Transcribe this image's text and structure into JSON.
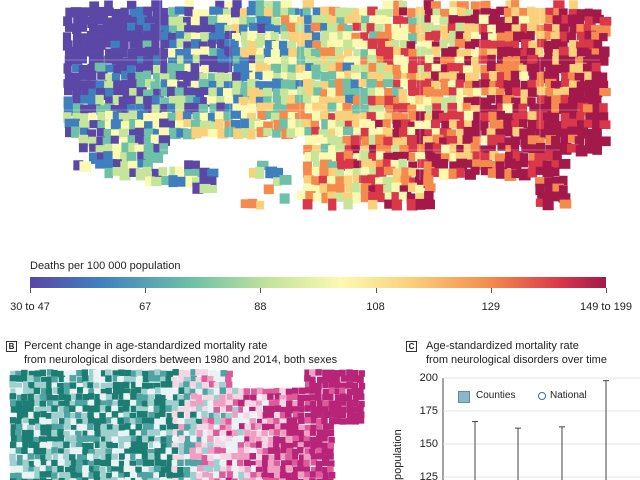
{
  "panel_a": {
    "legend": {
      "title": "Deaths per 100 000 population",
      "ticks": [
        "30 to 47",
        "67",
        "88",
        "108",
        "129",
        "149 to 199"
      ],
      "tick_positions": [
        0,
        0.2,
        0.4,
        0.6,
        0.8,
        1.0
      ]
    },
    "palette": [
      "#5a47a6",
      "#3f7fbf",
      "#6ec0a8",
      "#c5e59a",
      "#fbfab0",
      "#fbd07a",
      "#f48a4d",
      "#d9374a",
      "#a3194a"
    ]
  },
  "panel_b": {
    "badge": "B",
    "title_line1": "Percent change in age-standardized mortality rate",
    "title_line2": "from neurological disorders between 1980 and 2014, both sexes",
    "palette": [
      "#1c7d73",
      "#4fa3a0",
      "#9fcfcf",
      "#e9f2f4",
      "#f6d6e4",
      "#ef9fc3",
      "#dc5b9a",
      "#b72478"
    ]
  },
  "panel_c": {
    "badge": "C",
    "title_line1": "Age-standardized mortality rate",
    "title_line2": "from neurological disorders over time",
    "legend": {
      "counties": "Counties",
      "national": "National"
    },
    "y_axis_title": "population",
    "y_ticks": [
      "200",
      "175",
      "150",
      "125"
    ]
  },
  "chart_data": {
    "type": "bar",
    "title": "Age-standardized mortality rate from neurological disorders over time",
    "ylabel": "population",
    "ylim": [
      125,
      200
    ],
    "series": [
      {
        "name": "Counties",
        "values": [
          167,
          162,
          163,
          198
        ]
      }
    ],
    "grid": true,
    "legend_position": "top-left"
  }
}
